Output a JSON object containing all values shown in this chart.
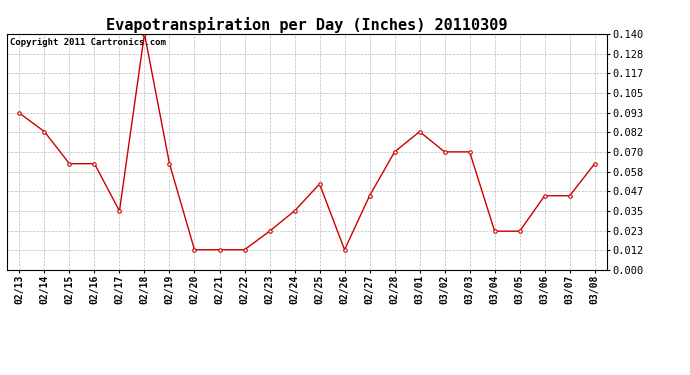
{
  "title": "Evapotranspiration per Day (Inches) 20110309",
  "copyright_text": "Copyright 2011 Cartronics.com",
  "x_labels": [
    "02/13",
    "02/14",
    "02/15",
    "02/16",
    "02/17",
    "02/18",
    "02/19",
    "02/20",
    "02/21",
    "02/22",
    "02/23",
    "02/24",
    "02/25",
    "02/26",
    "02/27",
    "02/28",
    "03/01",
    "03/02",
    "03/03",
    "03/04",
    "03/05",
    "03/06",
    "03/07",
    "03/08"
  ],
  "y_values": [
    0.093,
    0.082,
    0.063,
    0.063,
    0.035,
    0.14,
    0.063,
    0.012,
    0.012,
    0.012,
    0.023,
    0.035,
    0.051,
    0.012,
    0.044,
    0.07,
    0.082,
    0.07,
    0.07,
    0.023,
    0.023,
    0.044,
    0.044,
    0.063
  ],
  "line_color": "#cc0000",
  "marker": "o",
  "marker_size": 2.5,
  "background_color": "#ffffff",
  "grid_color": "#bbbbbb",
  "ylim": [
    0.0,
    0.14
  ],
  "yticks": [
    0.0,
    0.012,
    0.023,
    0.035,
    0.047,
    0.058,
    0.07,
    0.082,
    0.093,
    0.105,
    0.117,
    0.128,
    0.14
  ],
  "title_fontsize": 11,
  "copyright_fontsize": 6.5,
  "tick_fontsize": 7,
  "ytick_fontsize": 7.5
}
